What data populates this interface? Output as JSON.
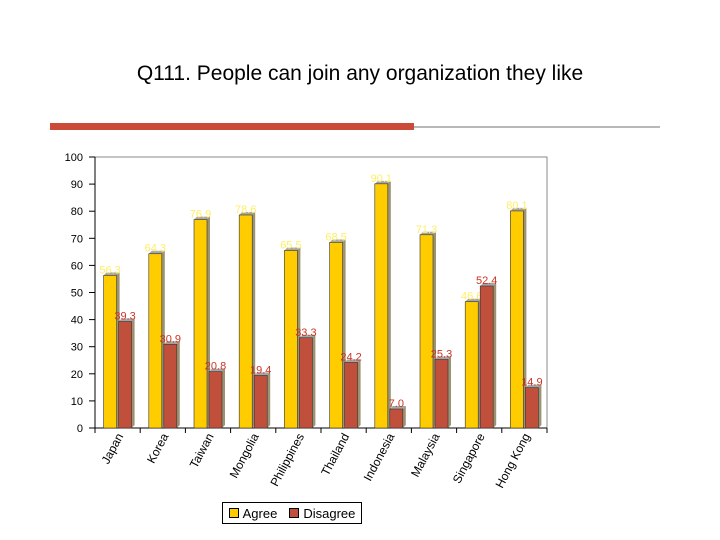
{
  "colors": {
    "background": "#ffffff",
    "plot_background": "#ffffff",
    "accent_red": "#cc4a38",
    "accent_gray": "#b8b8b8",
    "agree": "#ffcc00",
    "disagree": "#c0503c",
    "agree_label": "#ffee66",
    "disagree_label": "#cc3322"
  },
  "chart_data": {
    "type": "bar",
    "title": "Q111. People can join any organization they like",
    "xlabel": "",
    "ylabel": "",
    "ylim": [
      0,
      100
    ],
    "yticks": [
      0,
      10,
      20,
      30,
      40,
      50,
      60,
      70,
      80,
      90,
      100
    ],
    "grid": false,
    "legend_position": "bottom",
    "categories": [
      "Japan",
      "Korea",
      "Taiwan",
      "Mongolia",
      "Philippines",
      "Thailand",
      "Indonesia",
      "Malaysia",
      "Singapore",
      "Hong Kong"
    ],
    "series": [
      {
        "name": "Agree",
        "color": "#ffcc00",
        "values": [
          56.3,
          64.3,
          76.9,
          78.6,
          65.5,
          68.5,
          90.1,
          71.3,
          46.6,
          80.1
        ],
        "labels": [
          "56.3",
          "64.3",
          "76.9",
          "78.6",
          "65.5",
          "68.5",
          "90.1",
          "71.3",
          "46.6",
          "80.1"
        ]
      },
      {
        "name": "Disagree",
        "color": "#c0503c",
        "values": [
          39.3,
          30.9,
          20.8,
          19.4,
          33.3,
          24.2,
          7.0,
          25.3,
          52.4,
          14.9
        ],
        "labels": [
          "39.3",
          "30.9",
          "20.8",
          "19.4",
          "33.3",
          "24.2",
          "7.0",
          "25.3",
          "52.4",
          "14.9"
        ]
      }
    ]
  }
}
